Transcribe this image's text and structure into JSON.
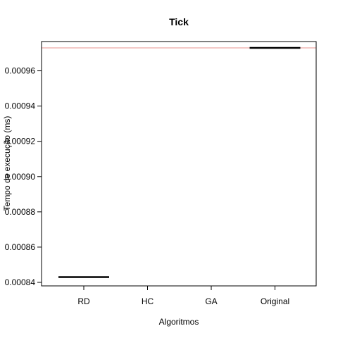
{
  "chart_data": {
    "type": "box",
    "title": "Tick",
    "xlabel": "Algoritmos",
    "ylabel": "Tempo de execução (ms)",
    "categories": [
      "RD",
      "HC",
      "GA",
      "Original"
    ],
    "y_ticks": [
      0.00084,
      0.00086,
      0.00088,
      0.0009,
      0.00092,
      0.00094,
      0.00096
    ],
    "y_tick_labels": [
      "0.00084",
      "0.00086",
      "0.00088",
      "0.00090",
      "0.00092",
      "0.00094",
      "0.00096"
    ],
    "ylim": [
      0.000838,
      0.0009766
    ],
    "values": [
      0.000843,
      null,
      null,
      0.000973
    ],
    "reference_line": {
      "y": 0.000973,
      "color": "#e8938f"
    },
    "colors": {
      "median": "#000000",
      "frame": "#000000"
    }
  }
}
